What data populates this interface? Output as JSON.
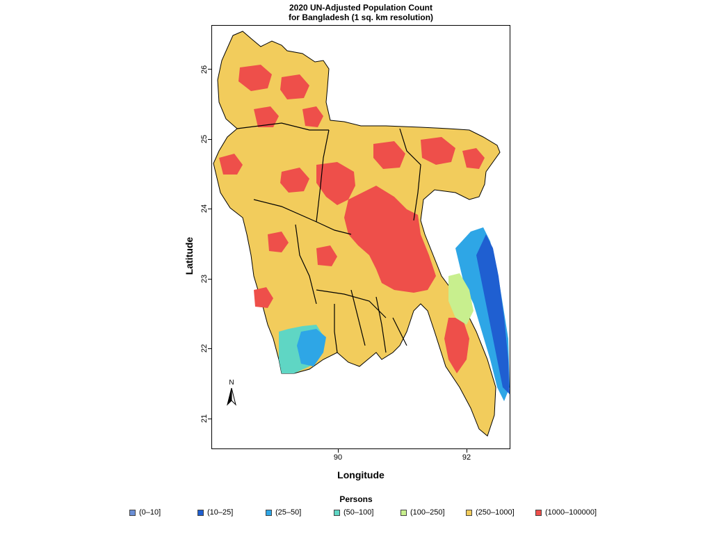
{
  "title_line1": "2020 UN-Adjusted Population Count",
  "title_line2": "for Bangladesh (1 sq. km resolution)",
  "xlabel": "Longitude",
  "ylabel": "Latitude",
  "north_label": "N",
  "legend_title": "Persons",
  "y_ticks": [
    "26",
    "25",
    "24",
    "23",
    "22",
    "21"
  ],
  "x_ticks": [
    "90",
    "92"
  ],
  "legend": [
    {
      "label": "(0–10]",
      "color": "#6b8fd6"
    },
    {
      "label": "(10–25]",
      "color": "#1f5fd1"
    },
    {
      "label": "(25–50]",
      "color": "#2ea6e6"
    },
    {
      "label": "(50–100]",
      "color": "#5fd6c4"
    },
    {
      "label": "(100–250]",
      "color": "#c8ef8e"
    },
    {
      "label": "(250–1000]",
      "color": "#f2cc5c"
    },
    {
      "label": "(1000–100000]",
      "color": "#ee4f4a"
    }
  ],
  "colors": {
    "land": "#f2cc5c",
    "dense": "#ee4f4a",
    "sparse_blue": "#2ea6e6",
    "deep_blue": "#1f5fd1",
    "teal": "#5fd6c4",
    "light_green": "#c8ef8e",
    "border": "#000000"
  }
}
